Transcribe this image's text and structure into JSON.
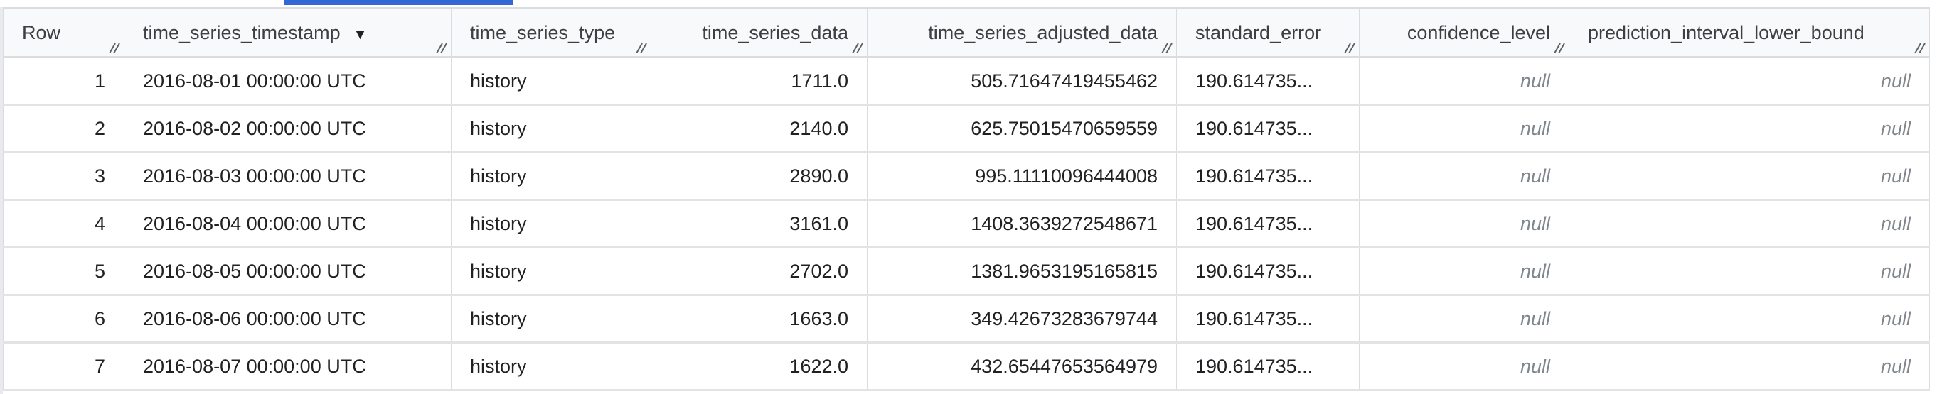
{
  "table": {
    "sort_icon": "sort-descending-icon",
    "columns": [
      {
        "label": "Row",
        "sorted": false
      },
      {
        "label": "time_series_timestamp",
        "sorted": true
      },
      {
        "label": "time_series_type",
        "sorted": false
      },
      {
        "label": "time_series_data",
        "sorted": false
      },
      {
        "label": "time_series_adjusted_data",
        "sorted": false
      },
      {
        "label": "standard_error",
        "sorted": false
      },
      {
        "label": "confidence_level",
        "sorted": false
      },
      {
        "label": "prediction_interval_lower_bound",
        "sorted": false
      }
    ],
    "rows": [
      [
        "1",
        "2016-08-01 00:00:00 UTC",
        "history",
        "1711.0",
        "505.71647419455462",
        "190.614735...",
        "null",
        "null"
      ],
      [
        "2",
        "2016-08-02 00:00:00 UTC",
        "history",
        "2140.0",
        "625.75015470659559",
        "190.614735...",
        "null",
        "null"
      ],
      [
        "3",
        "2016-08-03 00:00:00 UTC",
        "history",
        "2890.0",
        "995.11110096444008",
        "190.614735...",
        "null",
        "null"
      ],
      [
        "4",
        "2016-08-04 00:00:00 UTC",
        "history",
        "3161.0",
        "1408.3639272548671",
        "190.614735...",
        "null",
        "null"
      ],
      [
        "5",
        "2016-08-05 00:00:00 UTC",
        "history",
        "2702.0",
        "1381.9653195165815",
        "190.614735...",
        "null",
        "null"
      ],
      [
        "6",
        "2016-08-06 00:00:00 UTC",
        "history",
        "1663.0",
        "349.42673283679744",
        "190.614735...",
        "null",
        "null"
      ],
      [
        "7",
        "2016-08-07 00:00:00 UTC",
        "history",
        "1622.0",
        "432.65447653564979",
        "190.614735...",
        "null",
        "null"
      ]
    ]
  }
}
